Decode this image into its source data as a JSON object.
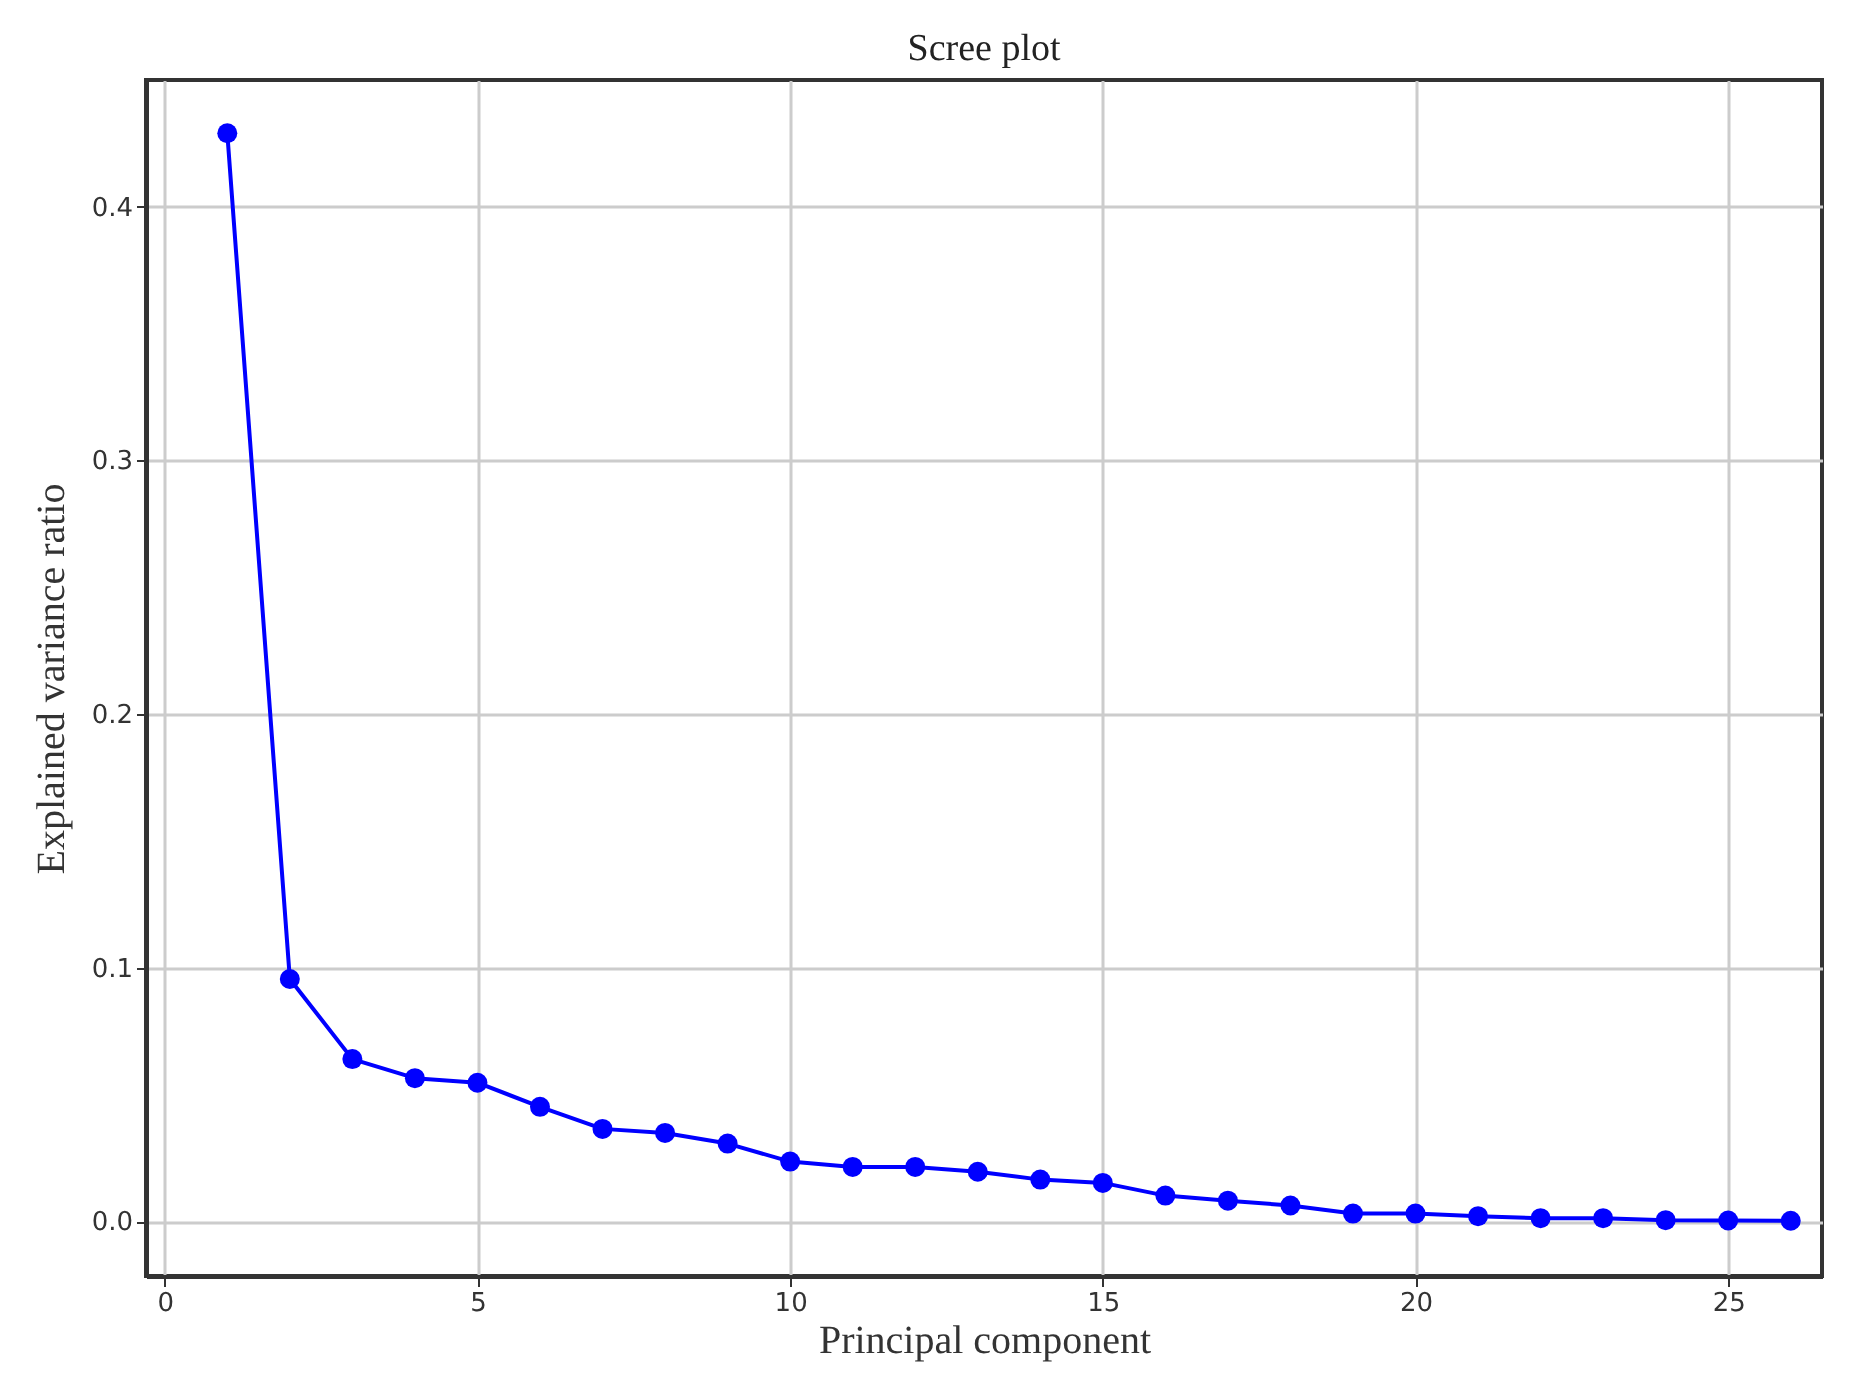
{
  "chart_data": {
    "type": "line",
    "title": "Scree plot",
    "xlabel": "Principal component",
    "ylabel": "Explained variance ratio",
    "x": [
      1,
      2,
      3,
      4,
      5,
      6,
      7,
      8,
      9,
      10,
      11,
      12,
      13,
      14,
      15,
      16,
      17,
      18,
      19,
      20,
      21,
      22,
      23,
      24,
      25,
      26
    ],
    "series": [
      {
        "color": "#0000ff",
        "values": [
          0.429,
          0.0956,
          0.064,
          0.0565,
          0.0547,
          0.0452,
          0.0365,
          0.0349,
          0.0307,
          0.0236,
          0.0215,
          0.0215,
          0.0196,
          0.0165,
          0.0152,
          0.0102,
          0.0082,
          0.0063,
          0.0031,
          0.0031,
          0.0021,
          0.0013,
          0.0013,
          0.0005,
          0.0004,
          0.0003
        ]
      }
    ],
    "xlim": [
      -0.3,
      26.5
    ],
    "xticks": [
      0,
      5,
      10,
      15,
      20,
      25
    ],
    "ylim": [
      -0.0215,
      0.45
    ],
    "yticks": [
      {
        "value": 0,
        "label": "0.0"
      },
      {
        "value": 0.1,
        "label": "0.1"
      },
      {
        "value": 0.2,
        "label": "0.2"
      },
      {
        "value": 0.3,
        "label": "0.3"
      },
      {
        "value": 0.4,
        "label": "0.4"
      }
    ],
    "grid": true,
    "marker": "circle",
    "line_style": "solid"
  }
}
